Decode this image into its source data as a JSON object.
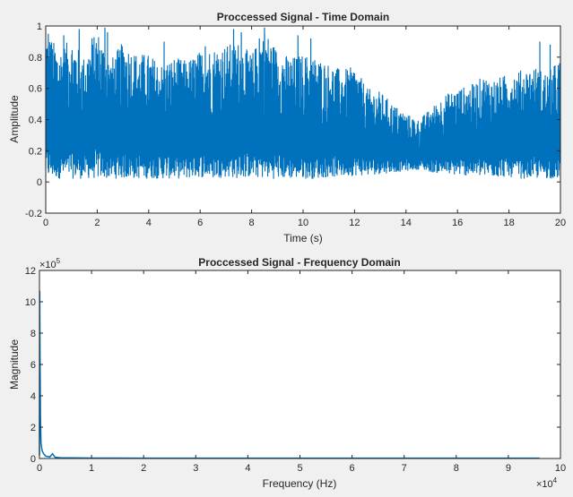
{
  "colors": {
    "figure_background": "#f0f0f0",
    "axes_background": "#ffffff",
    "line": "#0072bd",
    "axis": "#262626"
  },
  "chart_data": [
    {
      "type": "line",
      "title": "Proccessed Signal - Time Domain",
      "xlabel": "Time (s)",
      "ylabel": "Amplitude",
      "xlim": [
        0,
        20
      ],
      "ylim": [
        -0.2,
        1
      ],
      "xticks": [
        0,
        2,
        4,
        6,
        8,
        10,
        12,
        14,
        16,
        18,
        20
      ],
      "xtick_labels": [
        "0",
        "2",
        "4",
        "6",
        "8",
        "10",
        "12",
        "14",
        "16",
        "18",
        "20"
      ],
      "yticks": [
        -0.2,
        0,
        0.2,
        0.4,
        0.6,
        0.8,
        1
      ],
      "ytick_labels": [
        "-0.2",
        "0",
        "0.2",
        "0.4",
        "0.6",
        "0.8",
        "1"
      ],
      "grid": false,
      "legend": null,
      "series": [
        {
          "x": [
            0,
            0.5,
            1,
            1.5,
            2,
            2.5,
            3,
            3.5,
            4,
            4.5,
            5,
            5.5,
            6,
            6.5,
            7,
            7.5,
            8,
            8.5,
            9,
            9.5,
            10,
            10.5,
            11,
            11.5,
            12,
            12.5,
            13,
            13.5,
            14,
            14.5,
            15,
            15.5,
            16,
            16.5,
            17,
            17.5,
            18,
            18.5,
            19,
            19.5,
            20
          ],
          "upper": [
            0.98,
            0.85,
            0.92,
            0.8,
            0.98,
            0.78,
            0.9,
            0.83,
            0.82,
            0.76,
            0.8,
            0.78,
            0.84,
            0.86,
            0.88,
            0.9,
            0.82,
            0.98,
            0.85,
            0.8,
            0.82,
            0.8,
            0.76,
            0.72,
            0.74,
            0.6,
            0.58,
            0.5,
            0.44,
            0.4,
            0.48,
            0.56,
            0.6,
            0.62,
            0.68,
            0.66,
            0.7,
            0.72,
            0.74,
            0.7,
            0.8
          ],
          "lower": [
            0.02,
            0.02,
            0.02,
            0.02,
            0.02,
            0.02,
            0.02,
            0.02,
            0.02,
            0.02,
            0.02,
            0.02,
            0.03,
            0.02,
            0.03,
            0.02,
            0.03,
            0.02,
            0.02,
            0.02,
            0.02,
            0.02,
            0.03,
            0.03,
            0.04,
            0.04,
            0.05,
            0.06,
            0.07,
            0.08,
            0.06,
            0.05,
            0.04,
            0.04,
            0.03,
            0.03,
            0.03,
            0.02,
            0.02,
            0.02,
            0.02
          ],
          "peak_times": [
            0.1,
            0.2,
            0.7,
            1.3,
            1.8,
            2.3,
            2.4,
            4.6,
            6.2,
            7.3,
            7.6,
            8.3,
            8.5,
            9.8,
            10.3,
            19.2,
            19.6
          ],
          "peak_values": [
            0.95,
            0.88,
            0.94,
            0.98,
            0.92,
            0.99,
            0.96,
            0.9,
            0.87,
            0.98,
            0.96,
            0.92,
            0.99,
            0.94,
            0.92,
            0.9,
            0.88
          ]
        }
      ]
    },
    {
      "type": "line",
      "title": "Proccessed Signal - Frequency Domain",
      "xlabel": "Frequency (Hz)",
      "ylabel": "Magnitude",
      "xlim": [
        0,
        10
      ],
      "ylim": [
        0,
        12
      ],
      "x_exponent": "×10",
      "x_exponent_power": "4",
      "y_exponent": "×10",
      "y_exponent_power": "5",
      "xticks": [
        0,
        1,
        2,
        3,
        4,
        5,
        6,
        7,
        8,
        9,
        10
      ],
      "xtick_labels": [
        "0",
        "1",
        "2",
        "3",
        "4",
        "5",
        "6",
        "7",
        "8",
        "9",
        "10"
      ],
      "yticks": [
        0,
        2,
        4,
        6,
        8,
        10,
        12
      ],
      "ytick_labels": [
        "0",
        "2",
        "4",
        "6",
        "8",
        "10",
        "12"
      ],
      "grid": false,
      "legend": null,
      "series": [
        {
          "x": [
            0,
            0.005,
            0.01,
            0.02,
            0.03,
            0.05,
            0.08,
            0.12,
            0.2,
            0.25,
            0.3,
            0.4,
            0.6,
            1,
            2,
            3,
            4,
            5,
            6,
            7,
            8,
            9,
            9.6
          ],
          "y": [
            0.2,
            10.7,
            7.0,
            2.5,
            1.0,
            0.5,
            0.3,
            0.15,
            0.1,
            0.3,
            0.08,
            0.05,
            0.04,
            0.03,
            0.02,
            0.02,
            0.02,
            0.02,
            0.02,
            0.02,
            0.02,
            0.02,
            0.02
          ]
        }
      ]
    }
  ]
}
